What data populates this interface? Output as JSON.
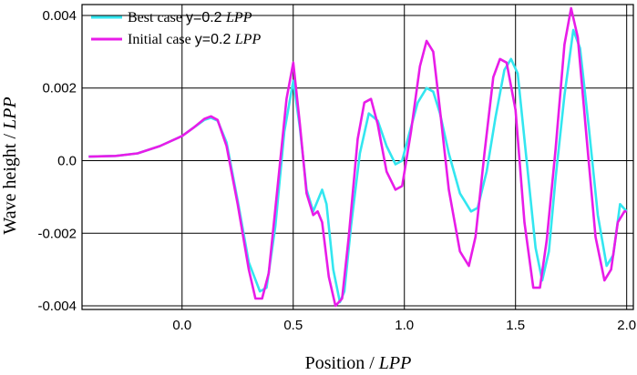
{
  "chart_data": {
    "type": "line",
    "xlabel_text": "Position / ",
    "xlabel_italic": "LPP",
    "ylabel_text": "Wave height / ",
    "ylabel_italic": "LPP",
    "xlim": [
      -0.45,
      2.03
    ],
    "ylim": [
      -0.0041,
      0.0043
    ],
    "grid": true,
    "legend_position": "top-left",
    "x_ticks": [
      {
        "value": 0.0,
        "label": "0.0"
      },
      {
        "value": 0.5,
        "label": "0.5"
      },
      {
        "value": 1.0,
        "label": "1.0"
      },
      {
        "value": 1.5,
        "label": "1.5"
      },
      {
        "value": 2.0,
        "label": "2.0"
      }
    ],
    "y_ticks": [
      {
        "value": 0.004,
        "label": "0.004"
      },
      {
        "value": 0.002,
        "label": "0.002"
      },
      {
        "value": 0.0,
        "label": "0.0"
      },
      {
        "value": -0.002,
        "label": "-0.002"
      },
      {
        "value": -0.004,
        "label": "-0.004"
      }
    ],
    "series": [
      {
        "name": "Best case",
        "legend_prefix": "Best case ",
        "legend_mid": "y=0.2 ",
        "legend_italic": "LPP",
        "color": "#33e6f0",
        "x": [
          -0.42,
          -0.3,
          -0.2,
          -0.1,
          0.0,
          0.05,
          0.1,
          0.13,
          0.16,
          0.2,
          0.25,
          0.3,
          0.35,
          0.38,
          0.42,
          0.46,
          0.5,
          0.53,
          0.56,
          0.59,
          0.61,
          0.63,
          0.65,
          0.68,
          0.71,
          0.73,
          0.76,
          0.8,
          0.84,
          0.88,
          0.92,
          0.96,
          0.99,
          1.02,
          1.06,
          1.1,
          1.13,
          1.16,
          1.2,
          1.25,
          1.3,
          1.33,
          1.37,
          1.41,
          1.45,
          1.48,
          1.51,
          1.55,
          1.59,
          1.62,
          1.65,
          1.68,
          1.72,
          1.76,
          1.79,
          1.83,
          1.87,
          1.91,
          1.94,
          1.97,
          2.0
        ],
        "y": [
          0.00011,
          0.00013,
          0.0002,
          0.0004,
          0.00068,
          0.0009,
          0.00112,
          0.00118,
          0.0011,
          0.0005,
          -0.0011,
          -0.0028,
          -0.0036,
          -0.0035,
          -0.0018,
          0.0008,
          0.0022,
          0.0009,
          -0.0008,
          -0.0014,
          -0.0011,
          -0.0008,
          -0.0012,
          -0.003,
          -0.0039,
          -0.0036,
          -0.0018,
          0.0002,
          0.0013,
          0.0011,
          0.0004,
          -0.0001,
          0.0,
          0.0007,
          0.0016,
          0.002,
          0.0019,
          0.0013,
          0.0002,
          -0.0009,
          -0.0014,
          -0.0013,
          -0.0003,
          0.0012,
          0.0025,
          0.0028,
          0.0024,
          0.0,
          -0.0024,
          -0.0033,
          -0.0025,
          -0.0005,
          0.0018,
          0.0036,
          0.0031,
          0.0009,
          -0.0015,
          -0.0029,
          -0.0026,
          -0.0012,
          -0.0014
        ]
      },
      {
        "name": "Initial case",
        "legend_prefix": "Initial case ",
        "legend_mid": "y=0.2 ",
        "legend_italic": "LPP",
        "color": "#e81ce8",
        "x": [
          -0.42,
          -0.3,
          -0.2,
          -0.1,
          0.0,
          0.05,
          0.1,
          0.13,
          0.16,
          0.2,
          0.25,
          0.3,
          0.33,
          0.36,
          0.39,
          0.43,
          0.47,
          0.5,
          0.53,
          0.56,
          0.59,
          0.61,
          0.63,
          0.66,
          0.69,
          0.72,
          0.75,
          0.79,
          0.82,
          0.85,
          0.88,
          0.92,
          0.96,
          0.99,
          1.03,
          1.07,
          1.1,
          1.13,
          1.16,
          1.2,
          1.25,
          1.29,
          1.32,
          1.36,
          1.4,
          1.43,
          1.46,
          1.5,
          1.54,
          1.58,
          1.61,
          1.64,
          1.68,
          1.72,
          1.75,
          1.78,
          1.82,
          1.86,
          1.9,
          1.93,
          1.96,
          1.99,
          2.0
        ],
        "y": [
          0.00011,
          0.00013,
          0.0002,
          0.0004,
          0.00068,
          0.0009,
          0.00115,
          0.00122,
          0.00112,
          0.0004,
          -0.0012,
          -0.003,
          -0.0038,
          -0.0038,
          -0.0031,
          -0.0007,
          0.0017,
          0.0027,
          0.001,
          -0.0009,
          -0.0015,
          -0.0014,
          -0.0017,
          -0.0032,
          -0.004,
          -0.0038,
          -0.0021,
          0.0006,
          0.0016,
          0.0017,
          0.001,
          -0.0003,
          -0.0008,
          -0.0007,
          0.0008,
          0.0026,
          0.0033,
          0.003,
          0.0014,
          -0.0008,
          -0.0025,
          -0.0029,
          -0.0021,
          0.0002,
          0.0023,
          0.0028,
          0.0027,
          0.0014,
          -0.0017,
          -0.0035,
          -0.0035,
          -0.0022,
          0.0003,
          0.0032,
          0.0042,
          0.0034,
          0.0006,
          -0.0021,
          -0.0033,
          -0.003,
          -0.0017,
          -0.0014,
          -0.0014
        ]
      }
    ]
  }
}
